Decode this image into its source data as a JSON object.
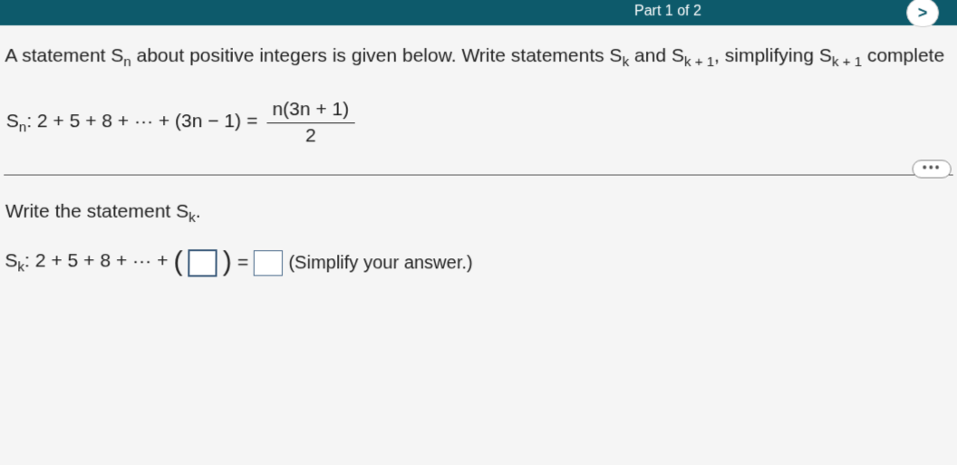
{
  "header": {
    "part_label": "Part 1 of 2",
    "next_arrow": ">"
  },
  "problem": {
    "intro_1": "A statement S",
    "intro_sub_n": "n",
    "intro_2": " about positive integers is given below. Write statements S",
    "intro_sub_k1": "k",
    "intro_3": " and S",
    "intro_sub_k2": "k + 1",
    "intro_4": ", simplifying S",
    "intro_sub_k3": "k + 1",
    "intro_5": " complete"
  },
  "formula": {
    "label_s": "S",
    "label_sub": "n",
    "lhs": ": 2 + 5 + 8 + ··· + (3n − 1) = ",
    "frac_num": "n(3n + 1)",
    "frac_den": "2"
  },
  "instruction": {
    "text_1": "Write the statement S",
    "sub_k": "k",
    "text_2": "."
  },
  "answer": {
    "label_s": "S",
    "label_sub": "k",
    "lhs": ": 2 + 5 + 8 + ··· + ",
    "lparen": "(",
    "rparen": ")",
    "equals": " = ",
    "hint": "(Simplify your answer.)"
  },
  "ellipsis": "•••",
  "colors": {
    "header_bg": "#0d5a6b",
    "page_bg": "#f5f5f5",
    "text": "#222222",
    "input_border": "#3a5a7a"
  }
}
